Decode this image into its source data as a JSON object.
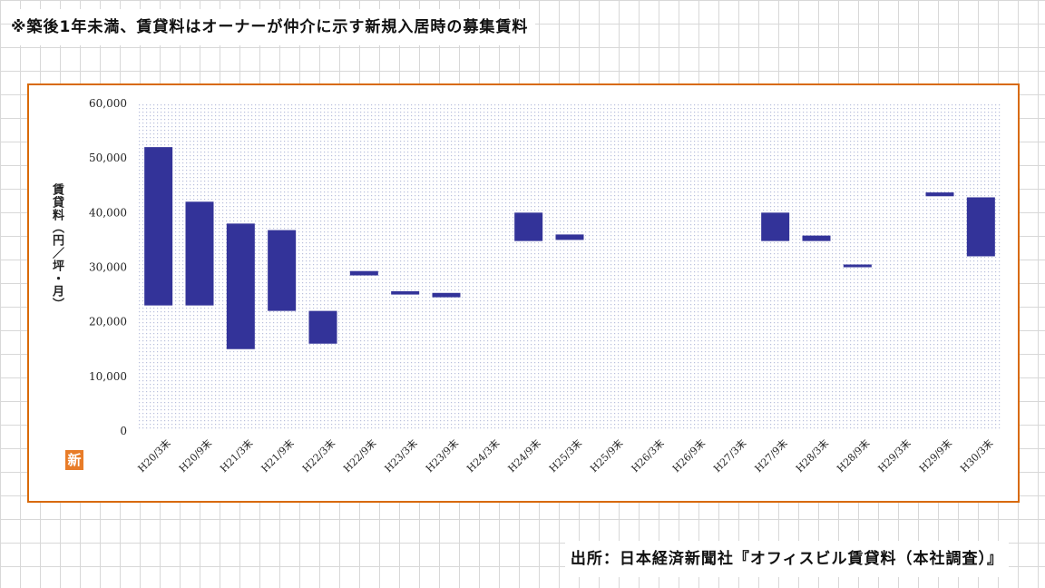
{
  "header_note": "※築後1年未満、賃貸料はオーナーが仲介に示す新規入居時の募集賃料",
  "source": "出所：日本経済新聞社『オフィスビル賃貸料（本社調査）』",
  "badge": "新",
  "colors": {
    "bar": "#333399",
    "frame": "#d86a0a",
    "plot_dots": "#b8bfdc"
  },
  "chart_data": {
    "type": "bar",
    "subtype": "floating-range",
    "ylabel": "賃貸料（円／坪・月）",
    "ylim": [
      0,
      60000
    ],
    "yticks": [
      "0",
      "10,000",
      "20,000",
      "30,000",
      "40,000",
      "50,000",
      "60,000"
    ],
    "ytick_values": [
      0,
      10000,
      20000,
      30000,
      40000,
      50000,
      60000
    ],
    "categories": [
      "H20/3末",
      "H20/9末",
      "H21/3末",
      "H21/9末",
      "H22/3末",
      "H22/9末",
      "H23/3末",
      "H23/9末",
      "H24/3末",
      "H24/9末",
      "H25/3末",
      "H25/9末",
      "H26/3末",
      "H26/9末",
      "H27/3末",
      "H27/9末",
      "H28/3末",
      "H28/9末",
      "H29/3末",
      "H29/9末",
      "H30/3末"
    ],
    "low": [
      23000,
      23000,
      15000,
      22000,
      16000,
      28500,
      25000,
      24500,
      null,
      34800,
      35000,
      null,
      null,
      null,
      null,
      34800,
      34800,
      30000,
      null,
      43000,
      32000
    ],
    "high": [
      52000,
      42000,
      38000,
      36800,
      22000,
      29300,
      25600,
      25300,
      null,
      40000,
      36000,
      null,
      null,
      null,
      null,
      40000,
      35800,
      30500,
      null,
      43700,
      42800
    ],
    "grid": false,
    "legend": "none"
  }
}
